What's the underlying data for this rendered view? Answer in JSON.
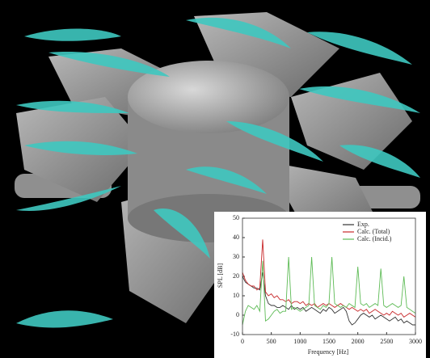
{
  "chart_data": {
    "type": "line",
    "xlabel": "Frequency [Hz]",
    "ylabel": "SPL [dB]",
    "xlim": [
      0,
      3000
    ],
    "ylim": [
      -10,
      50
    ],
    "xticks": [
      0,
      500,
      1000,
      1500,
      2000,
      2500,
      3000
    ],
    "yticks": [
      -10,
      0,
      10,
      20,
      30,
      40,
      50
    ],
    "legend": "upper right",
    "x": [
      0,
      50,
      100,
      150,
      200,
      250,
      300,
      350,
      400,
      450,
      500,
      550,
      600,
      650,
      700,
      750,
      800,
      850,
      900,
      950,
      1000,
      1050,
      1100,
      1150,
      1200,
      1250,
      1300,
      1350,
      1400,
      1450,
      1500,
      1550,
      1600,
      1650,
      1700,
      1750,
      1800,
      1850,
      1900,
      1950,
      2000,
      2050,
      2100,
      2150,
      2200,
      2250,
      2300,
      2350,
      2400,
      2450,
      2500,
      2550,
      2600,
      2650,
      2700,
      2750,
      2800,
      2850,
      2900,
      2950,
      3000
    ],
    "series": [
      {
        "name": "Exp.",
        "color": "#333333",
        "values": [
          20,
          17,
          16,
          15,
          14,
          14,
          13,
          22,
          10,
          6,
          5,
          5,
          4,
          4,
          5,
          4,
          3,
          5,
          3,
          4,
          3,
          4,
          2,
          3,
          4,
          3,
          2,
          1,
          3,
          2,
          4,
          3,
          1,
          2,
          3,
          4,
          2,
          -3,
          -5,
          -4,
          -2,
          0,
          1,
          0,
          -1,
          0,
          -2,
          -1,
          0,
          -1,
          -2,
          -3,
          -2,
          -1,
          -3,
          -2,
          -4,
          -3,
          -4,
          -5,
          -5
        ]
      },
      {
        "name": "Calc. (Total)",
        "color": "#c8282a",
        "values": [
          22,
          18,
          16,
          15,
          15,
          13,
          14,
          39,
          12,
          10,
          11,
          9,
          10,
          8,
          8,
          7,
          8,
          6,
          7,
          7,
          6,
          7,
          5,
          6,
          5,
          6,
          4,
          5,
          6,
          5,
          6,
          5,
          4,
          5,
          6,
          5,
          4,
          3,
          4,
          3,
          2,
          3,
          2,
          3,
          1,
          2,
          3,
          2,
          1,
          0,
          1,
          0,
          2,
          1,
          0,
          1,
          -1,
          0,
          1,
          0,
          -1
        ]
      },
      {
        "name": "Calc. (Incid.)",
        "color": "#5dbb55",
        "values": [
          -5,
          2,
          5,
          4,
          3,
          5,
          2,
          28,
          -3,
          -2,
          0,
          2,
          3,
          1,
          2,
          2,
          30,
          3,
          4,
          3,
          2,
          3,
          4,
          5,
          30,
          5,
          4,
          3,
          5,
          4,
          6,
          30,
          6,
          5,
          4,
          5,
          4,
          6,
          5,
          4,
          25,
          6,
          5,
          6,
          4,
          5,
          6,
          5,
          24,
          5,
          4,
          5,
          6,
          5,
          4,
          5,
          20,
          4,
          3,
          2,
          1
        ]
      }
    ]
  }
}
